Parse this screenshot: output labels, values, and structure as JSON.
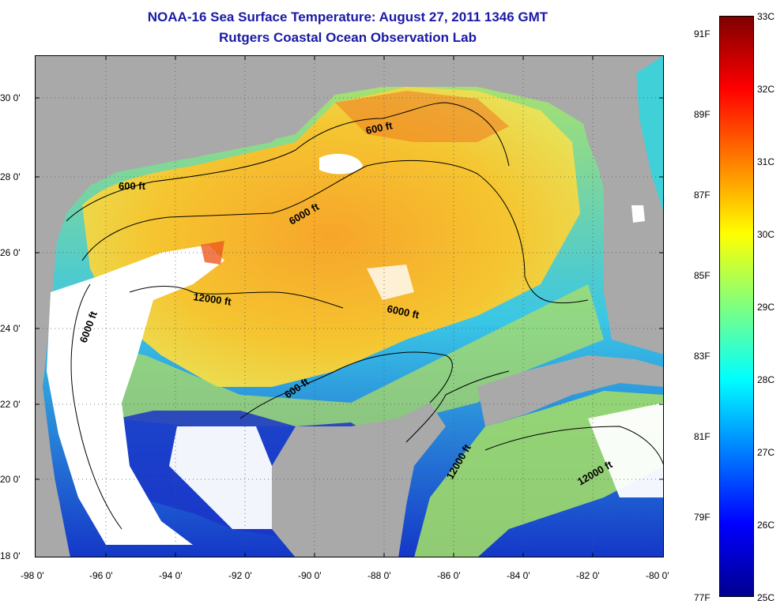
{
  "title": {
    "line1": "NOAA-16 Sea Surface Temperature:  August 27, 2011 1346 GMT",
    "line2": "Rutgers Coastal Ocean Observation Lab"
  },
  "map": {
    "lon_ticks": [
      "-98 0'",
      "-96 0'",
      "-94 0'",
      "-92 0'",
      "-90 0'",
      "-88 0'",
      "-86 0'",
      "-84 0'",
      "-82 0'",
      "-80 0'"
    ],
    "lat_ticks": [
      "30 0'",
      "28 0'",
      "26 0'",
      "24 0'",
      "22 0'",
      "20 0'",
      "18 0'"
    ],
    "contour_labels": [
      "600 ft",
      "600 ft",
      "6000 ft",
      "12000 ft",
      "6000 ft",
      "6000 ft",
      "600 ft",
      "12000 ft",
      "12000 ft"
    ],
    "colors": {
      "land": "#a9a9a9",
      "cloud": "#ffffff",
      "border": "#000000"
    }
  },
  "colorbar": {
    "celsius": [
      "33C",
      "32C",
      "31C",
      "30C",
      "29C",
      "28C",
      "27C",
      "26C",
      "25C"
    ],
    "fahrenheit": [
      "91F",
      "89F",
      "87F",
      "85F",
      "83F",
      "81F",
      "79F",
      "77F"
    ],
    "stops": [
      "#7f0000",
      "#ff0000",
      "#ff7f00",
      "#ffff00",
      "#7fff7f",
      "#00ffff",
      "#007fff",
      "#0000ff",
      "#00008f"
    ]
  }
}
